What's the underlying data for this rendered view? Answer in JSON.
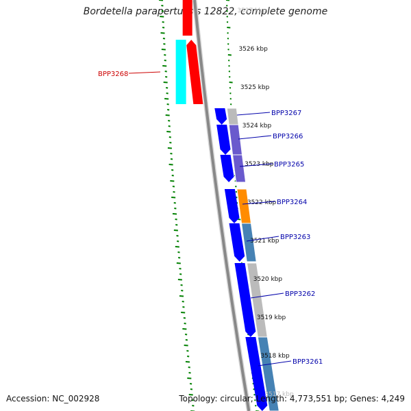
{
  "title": "Bordetella parapertussis 12822, complete genome",
  "accession": "Accession: NC_002928",
  "summary": "Topology: circular; Length: 4,773,551 bp; Genes: 4,249",
  "ruler": {
    "labels": [
      "3527 kbp",
      "3526 kbp",
      "3525 kbp",
      "3524 kbp",
      "3523 kbp",
      "3522 kbp",
      "3521 kbp",
      "3520 kbp",
      "3519 kbp",
      "3518 kbp",
      "3517 kbp"
    ],
    "faded": [
      true,
      false,
      false,
      false,
      false,
      false,
      false,
      false,
      false,
      false,
      true
    ]
  },
  "genes": [
    {
      "label": "BPP3268",
      "color": "#ff0000",
      "strand": "reverse",
      "side": "left"
    },
    {
      "label": "BPP3267",
      "color": "#0000ff",
      "strand": "forward",
      "side": "right"
    },
    {
      "label": "BPP3266",
      "color": "#0000ff",
      "strand": "forward",
      "side": "right"
    },
    {
      "label": "BPP3265",
      "color": "#0000ff",
      "strand": "forward",
      "side": "right"
    },
    {
      "label": "BPP3264",
      "color": "#0000ff",
      "strand": "forward",
      "side": "right"
    },
    {
      "label": "BPP3263",
      "color": "#0000ff",
      "strand": "forward",
      "side": "right"
    },
    {
      "label": "BPP3262",
      "color": "#0000ff",
      "strand": "forward",
      "side": "right"
    },
    {
      "label": "BPP3261",
      "color": "#0000ff",
      "strand": "forward",
      "side": "right"
    }
  ],
  "colors": {
    "backbone": "#888888",
    "tick": "#008000",
    "forward_cds": "#0000ff",
    "reverse_cds": "#ff0000",
    "cog_cyan": "#00ffff",
    "cog_orange": "#ff8c00",
    "cog_purple": "#6a5acd",
    "cog_steel": "#4682b4",
    "cog_grey": "#bbbbbb",
    "label_forward": "#0000aa",
    "label_reverse": "#cc0000"
  }
}
